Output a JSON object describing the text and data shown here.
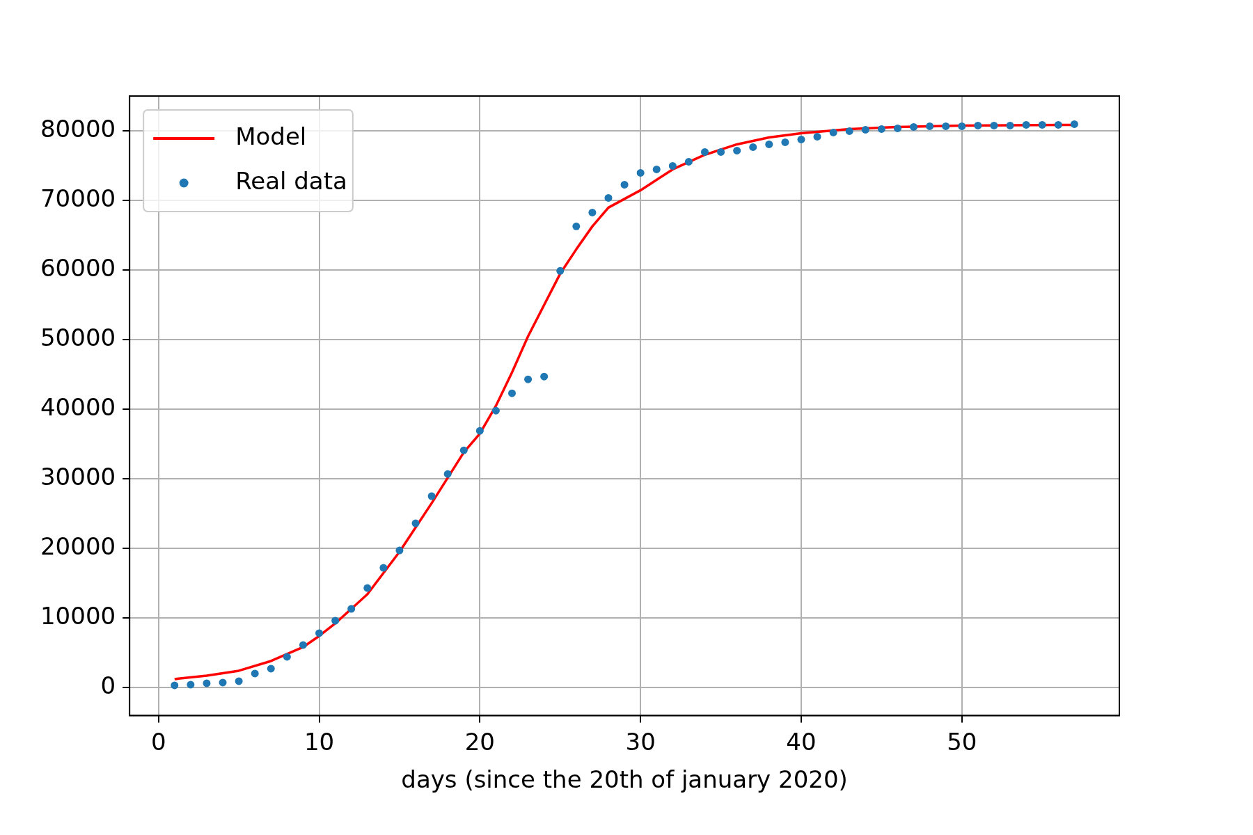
{
  "chart_data": {
    "type": "scatter",
    "xlabel": "days (since the 20th of january 2020)",
    "xlim": [
      -1.8,
      59.8
    ],
    "ylim": [
      -4050,
      85050
    ],
    "xticks": [
      0,
      10,
      20,
      30,
      40,
      50
    ],
    "yticks": [
      0,
      10000,
      20000,
      30000,
      40000,
      50000,
      60000,
      70000,
      80000
    ],
    "grid": true,
    "legend": "top left",
    "series": [
      {
        "name": "Model",
        "type": "line",
        "color": "#ff0000",
        "marker": "none",
        "line_style": "solid",
        "x": [
          1,
          3,
          5,
          7,
          9,
          10,
          11,
          13,
          15,
          17,
          19,
          20,
          21,
          22,
          23,
          24,
          25,
          26,
          27,
          28,
          30,
          32,
          34,
          36,
          38,
          40,
          43,
          46,
          50,
          57
        ],
        "values": [
          1200,
          1700,
          2400,
          3800,
          5800,
          7400,
          9200,
          13400,
          19500,
          26500,
          33800,
          36500,
          40500,
          45300,
          50500,
          55000,
          59500,
          63000,
          66300,
          69000,
          71500,
          74500,
          76600,
          78100,
          79100,
          79700,
          80300,
          80600,
          80800,
          80900
        ]
      },
      {
        "name": "Real data",
        "color": "#1f77b4",
        "marker": "circle",
        "x": [
          1,
          2,
          3,
          4,
          5,
          6,
          7,
          8,
          9,
          10,
          11,
          12,
          13,
          14,
          15,
          16,
          17,
          18,
          19,
          20,
          21,
          22,
          23,
          24,
          25,
          26,
          27,
          28,
          29,
          30,
          31,
          32,
          33,
          34,
          35,
          36,
          37,
          38,
          39,
          40,
          41,
          42,
          43,
          44,
          45,
          46,
          47,
          48,
          49,
          50,
          51,
          52,
          53,
          54,
          55,
          56,
          57
        ],
        "values": [
          300,
          400,
          600,
          700,
          900,
          2000,
          2700,
          4400,
          6100,
          7800,
          9600,
          11300,
          14300,
          17200,
          19700,
          23600,
          27500,
          30700,
          34100,
          36900,
          39800,
          42300,
          44300,
          44700,
          59900,
          66300,
          68300,
          70400,
          72300,
          74000,
          74500,
          75000,
          75600,
          77000,
          77000,
          77200,
          77700,
          78100,
          78400,
          78800,
          79200,
          79800,
          80000,
          80200,
          80300,
          80400,
          80600,
          80700,
          80700,
          80700,
          80800,
          80800,
          80800,
          80900,
          80900,
          80900,
          81000
        ]
      }
    ]
  }
}
